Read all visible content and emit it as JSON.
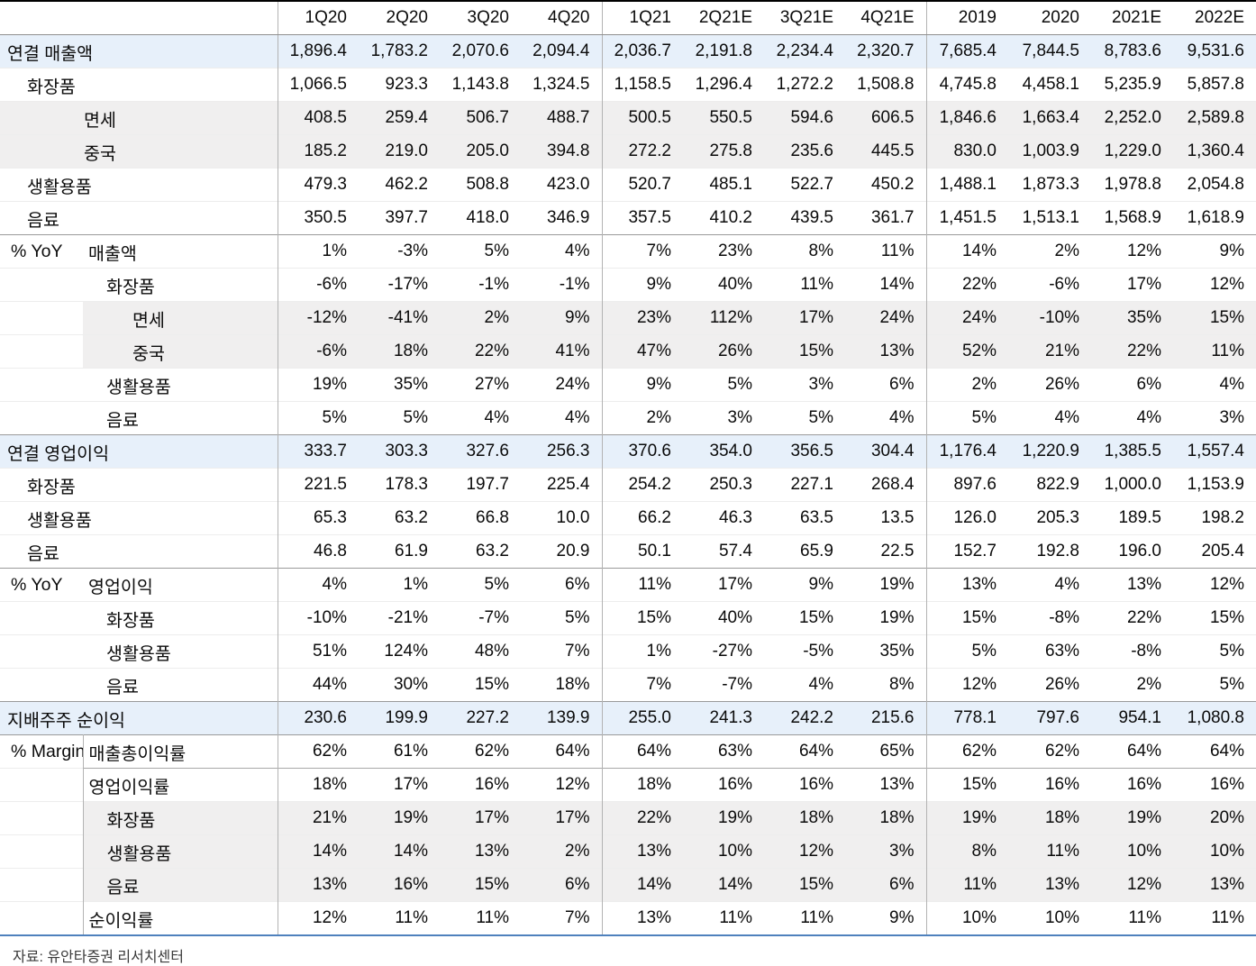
{
  "source_note": "자료: 유안타증권 리서치센터",
  "colors": {
    "highlight_row": "#e7f0fa",
    "subrow_band": "#f0efef",
    "bottom_rule": "#4f81bd",
    "header_top_rule": "#000000"
  },
  "table": {
    "columns": [
      "1Q20",
      "2Q20",
      "3Q20",
      "4Q20",
      "1Q21",
      "2Q21E",
      "3Q21E",
      "4Q21E",
      "2019",
      "2020",
      "2021E",
      "2022E"
    ],
    "rows": [
      {
        "label": "연결 매출액",
        "kind": "span",
        "indent": 0,
        "bg": "blue",
        "top": "none",
        "values": [
          "1,896.4",
          "1,783.2",
          "2,070.6",
          "2,094.4",
          "2,036.7",
          "2,191.8",
          "2,234.4",
          "2,320.7",
          "7,685.4",
          "7,844.5",
          "8,783.6",
          "9,531.6"
        ]
      },
      {
        "label": "화장품",
        "kind": "span",
        "indent": 1,
        "bg": "white",
        "top": "light",
        "values": [
          "1,066.5",
          "923.3",
          "1,143.8",
          "1,324.5",
          "1,158.5",
          "1,296.4",
          "1,272.2",
          "1,508.8",
          "4,745.8",
          "4,458.1",
          "5,235.9",
          "5,857.8"
        ]
      },
      {
        "label": "면세",
        "kind": "span",
        "indent": 2,
        "bg": "gray",
        "top": "light",
        "values": [
          "408.5",
          "259.4",
          "506.7",
          "488.7",
          "500.5",
          "550.5",
          "594.6",
          "606.5",
          "1,846.6",
          "1,663.4",
          "2,252.0",
          "2,589.8"
        ]
      },
      {
        "label": "중국",
        "kind": "span",
        "indent": 2,
        "bg": "gray",
        "top": "light",
        "values": [
          "185.2",
          "219.0",
          "205.0",
          "394.8",
          "272.2",
          "275.8",
          "235.6",
          "445.5",
          "830.0",
          "1,003.9",
          "1,229.0",
          "1,360.4"
        ]
      },
      {
        "label": "생활용품",
        "kind": "span",
        "indent": 1,
        "bg": "white",
        "top": "light",
        "values": [
          "479.3",
          "462.2",
          "508.8",
          "423.0",
          "520.7",
          "485.1",
          "522.7",
          "450.2",
          "1,488.1",
          "1,873.3",
          "1,978.8",
          "2,054.8"
        ]
      },
      {
        "label": "음료",
        "kind": "span",
        "indent": 1,
        "bg": "white",
        "top": "light",
        "values": [
          "350.5",
          "397.7",
          "418.0",
          "346.9",
          "357.5",
          "410.2",
          "439.5",
          "361.7",
          "1,451.5",
          "1,513.1",
          "1,568.9",
          "1,618.9"
        ]
      },
      {
        "prefix": "% YoY",
        "label": "매출액",
        "kind": "split",
        "sub": 0,
        "bg": "white",
        "top": "dark",
        "values": [
          "1%",
          "-3%",
          "5%",
          "4%",
          "7%",
          "23%",
          "8%",
          "11%",
          "14%",
          "2%",
          "12%",
          "9%"
        ]
      },
      {
        "prefix": "",
        "label": "화장품",
        "kind": "split",
        "sub": 1,
        "bg": "white",
        "top": "light",
        "values": [
          "-6%",
          "-17%",
          "-1%",
          "-1%",
          "9%",
          "40%",
          "11%",
          "14%",
          "22%",
          "-6%",
          "17%",
          "12%"
        ]
      },
      {
        "prefix": "",
        "label": "면세",
        "kind": "split",
        "sub": 2,
        "bg": "graypart",
        "top": "light",
        "values": [
          "-12%",
          "-41%",
          "2%",
          "9%",
          "23%",
          "112%",
          "17%",
          "24%",
          "24%",
          "-10%",
          "35%",
          "15%"
        ]
      },
      {
        "prefix": "",
        "label": "중국",
        "kind": "split",
        "sub": 2,
        "bg": "graypart",
        "top": "light",
        "values": [
          "-6%",
          "18%",
          "22%",
          "41%",
          "47%",
          "26%",
          "15%",
          "13%",
          "52%",
          "21%",
          "22%",
          "11%"
        ]
      },
      {
        "prefix": "",
        "label": "생활용품",
        "kind": "split",
        "sub": 1,
        "bg": "white",
        "top": "light",
        "values": [
          "19%",
          "35%",
          "27%",
          "24%",
          "9%",
          "5%",
          "3%",
          "6%",
          "2%",
          "26%",
          "6%",
          "4%"
        ]
      },
      {
        "prefix": "",
        "label": "음료",
        "kind": "split",
        "sub": 1,
        "bg": "white",
        "top": "light",
        "values": [
          "5%",
          "5%",
          "4%",
          "4%",
          "2%",
          "3%",
          "5%",
          "4%",
          "5%",
          "4%",
          "4%",
          "3%"
        ]
      },
      {
        "label": "연결 영업이익",
        "kind": "span",
        "indent": 0,
        "bg": "blue",
        "top": "dark",
        "values": [
          "333.7",
          "303.3",
          "327.6",
          "256.3",
          "370.6",
          "354.0",
          "356.5",
          "304.4",
          "1,176.4",
          "1,220.9",
          "1,385.5",
          "1,557.4"
        ]
      },
      {
        "label": "화장품",
        "kind": "span",
        "indent": 1,
        "bg": "white",
        "top": "light",
        "values": [
          "221.5",
          "178.3",
          "197.7",
          "225.4",
          "254.2",
          "250.3",
          "227.1",
          "268.4",
          "897.6",
          "822.9",
          "1,000.0",
          "1,153.9"
        ]
      },
      {
        "label": "생활용품",
        "kind": "span",
        "indent": 1,
        "bg": "white",
        "top": "light",
        "values": [
          "65.3",
          "63.2",
          "66.8",
          "10.0",
          "66.2",
          "46.3",
          "63.5",
          "13.5",
          "126.0",
          "205.3",
          "189.5",
          "198.2"
        ]
      },
      {
        "label": "음료",
        "kind": "span",
        "indent": 1,
        "bg": "white",
        "top": "light",
        "values": [
          "46.8",
          "61.9",
          "63.2",
          "20.9",
          "50.1",
          "57.4",
          "65.9",
          "22.5",
          "152.7",
          "192.8",
          "196.0",
          "205.4"
        ]
      },
      {
        "prefix": "% YoY",
        "label": "영업이익",
        "kind": "split",
        "sub": 0,
        "bg": "white",
        "top": "dark",
        "values": [
          "4%",
          "1%",
          "5%",
          "6%",
          "11%",
          "17%",
          "9%",
          "19%",
          "13%",
          "4%",
          "13%",
          "12%"
        ]
      },
      {
        "prefix": "",
        "label": "화장품",
        "kind": "split",
        "sub": 1,
        "bg": "white",
        "top": "light",
        "values": [
          "-10%",
          "-21%",
          "-7%",
          "5%",
          "15%",
          "40%",
          "15%",
          "19%",
          "15%",
          "-8%",
          "22%",
          "15%"
        ]
      },
      {
        "prefix": "",
        "label": "생활용품",
        "kind": "split",
        "sub": 1,
        "bg": "white",
        "top": "light",
        "values": [
          "51%",
          "124%",
          "48%",
          "7%",
          "1%",
          "-27%",
          "-5%",
          "35%",
          "5%",
          "63%",
          "-8%",
          "5%"
        ]
      },
      {
        "prefix": "",
        "label": "음료",
        "kind": "split",
        "sub": 1,
        "bg": "white",
        "top": "light",
        "values": [
          "44%",
          "30%",
          "15%",
          "18%",
          "7%",
          "-7%",
          "4%",
          "8%",
          "12%",
          "26%",
          "2%",
          "5%"
        ]
      },
      {
        "label": "지배주주 순이익",
        "kind": "span",
        "indent": 0,
        "bg": "blue",
        "top": "dark",
        "values": [
          "230.6",
          "199.9",
          "227.2",
          "139.9",
          "255.0",
          "241.3",
          "242.2",
          "215.6",
          "778.1",
          "797.6",
          "954.1",
          "1,080.8"
        ]
      },
      {
        "prefix": "% Margin",
        "label": "매출총이익률",
        "kind": "split",
        "sub": 0,
        "bg": "white",
        "top": "dark",
        "cola_rule": true,
        "values": [
          "62%",
          "61%",
          "62%",
          "64%",
          "64%",
          "63%",
          "64%",
          "65%",
          "62%",
          "62%",
          "64%",
          "64%"
        ]
      },
      {
        "prefix": "",
        "label": "영업이익률",
        "kind": "split",
        "sub": 0,
        "bg": "white",
        "top": "darkpart",
        "cola_rule": true,
        "values": [
          "18%",
          "17%",
          "16%",
          "12%",
          "18%",
          "16%",
          "16%",
          "13%",
          "15%",
          "16%",
          "16%",
          "16%"
        ]
      },
      {
        "prefix": "",
        "label": "화장품",
        "kind": "split",
        "sub": 1,
        "bg": "graypart",
        "top": "light",
        "cola_rule": true,
        "values": [
          "21%",
          "19%",
          "17%",
          "17%",
          "22%",
          "19%",
          "18%",
          "18%",
          "19%",
          "18%",
          "19%",
          "20%"
        ]
      },
      {
        "prefix": "",
        "label": "생활용품",
        "kind": "split",
        "sub": 1,
        "bg": "graypart",
        "top": "light",
        "cola_rule": true,
        "values": [
          "14%",
          "14%",
          "13%",
          "2%",
          "13%",
          "10%",
          "12%",
          "3%",
          "8%",
          "11%",
          "10%",
          "10%"
        ]
      },
      {
        "prefix": "",
        "label": "음료",
        "kind": "split",
        "sub": 1,
        "bg": "graypart",
        "top": "light",
        "cola_rule": true,
        "values": [
          "13%",
          "16%",
          "15%",
          "6%",
          "14%",
          "14%",
          "15%",
          "6%",
          "11%",
          "13%",
          "12%",
          "13%"
        ]
      },
      {
        "prefix": "",
        "label": "순이익률",
        "kind": "split",
        "sub": 0,
        "bg": "white",
        "top": "light",
        "cola_rule": true,
        "values": [
          "12%",
          "11%",
          "11%",
          "7%",
          "13%",
          "11%",
          "11%",
          "9%",
          "10%",
          "10%",
          "11%",
          "11%"
        ]
      }
    ]
  }
}
